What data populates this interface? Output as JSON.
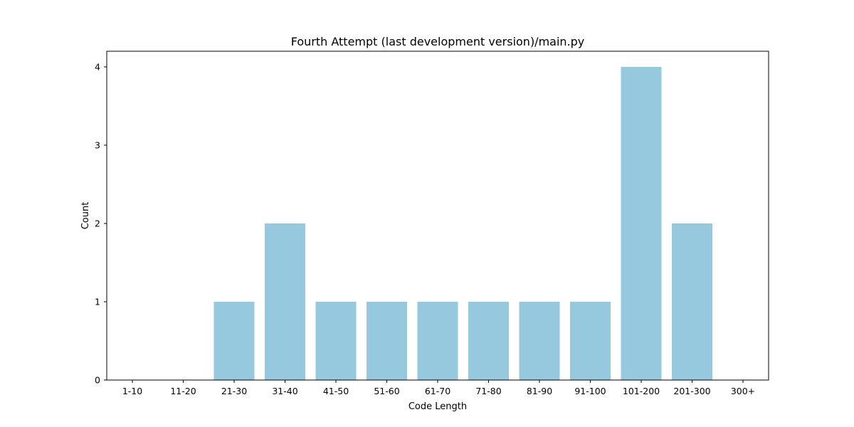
{
  "chart_data": {
    "type": "bar",
    "title": "Fourth Attempt (last development version)/main.py",
    "xlabel": "Code Length",
    "ylabel": "Count",
    "categories": [
      "1-10",
      "11-20",
      "21-30",
      "31-40",
      "41-50",
      "51-60",
      "61-70",
      "71-80",
      "81-90",
      "91-100",
      "101-200",
      "201-300",
      "300+"
    ],
    "values": [
      0,
      0,
      1,
      2,
      1,
      1,
      1,
      1,
      1,
      1,
      4,
      2,
      0
    ],
    "ylim": [
      0,
      4.2
    ],
    "yticks": [
      0,
      1,
      2,
      3,
      4
    ],
    "bar_color": "#96c9dd",
    "grid": false,
    "legend": "none"
  }
}
